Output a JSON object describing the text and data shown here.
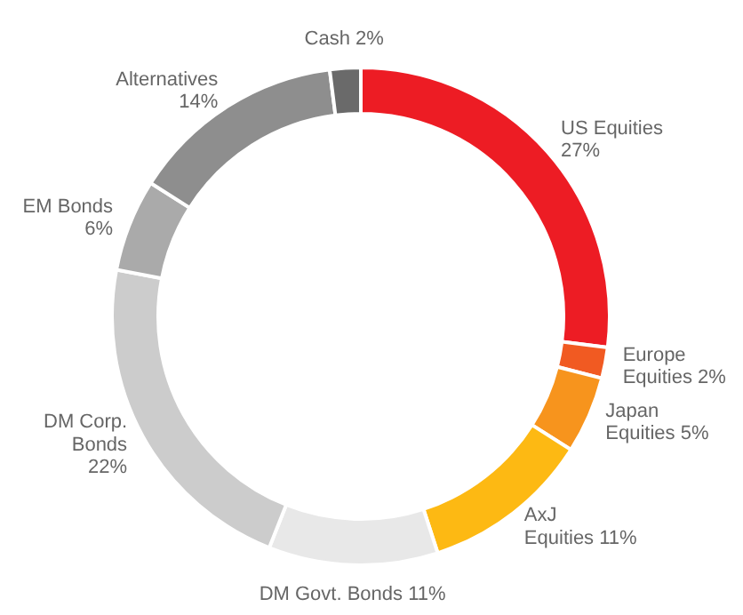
{
  "chart_data": {
    "type": "donut",
    "categories": [
      "US Equities",
      "Europe Equities",
      "Japan Equities",
      "AxJ Equities",
      "DM Govt. Bonds",
      "DM Corp. Bonds",
      "EM Bonds",
      "Alternatives",
      "Cash"
    ],
    "values": [
      27,
      2,
      5,
      11,
      11,
      22,
      6,
      14,
      2
    ],
    "colors": [
      "#ed1c24",
      "#f15a22",
      "#f7941d",
      "#fdb913",
      "#e8e8e8",
      "#cccccc",
      "#aaaaaa",
      "#8e8e8e",
      "#6a6a6a"
    ],
    "value_labels": [
      "27%",
      "2%",
      "5%",
      "11%",
      "11%",
      "22%",
      "6%",
      "14%",
      "2%"
    ]
  }
}
